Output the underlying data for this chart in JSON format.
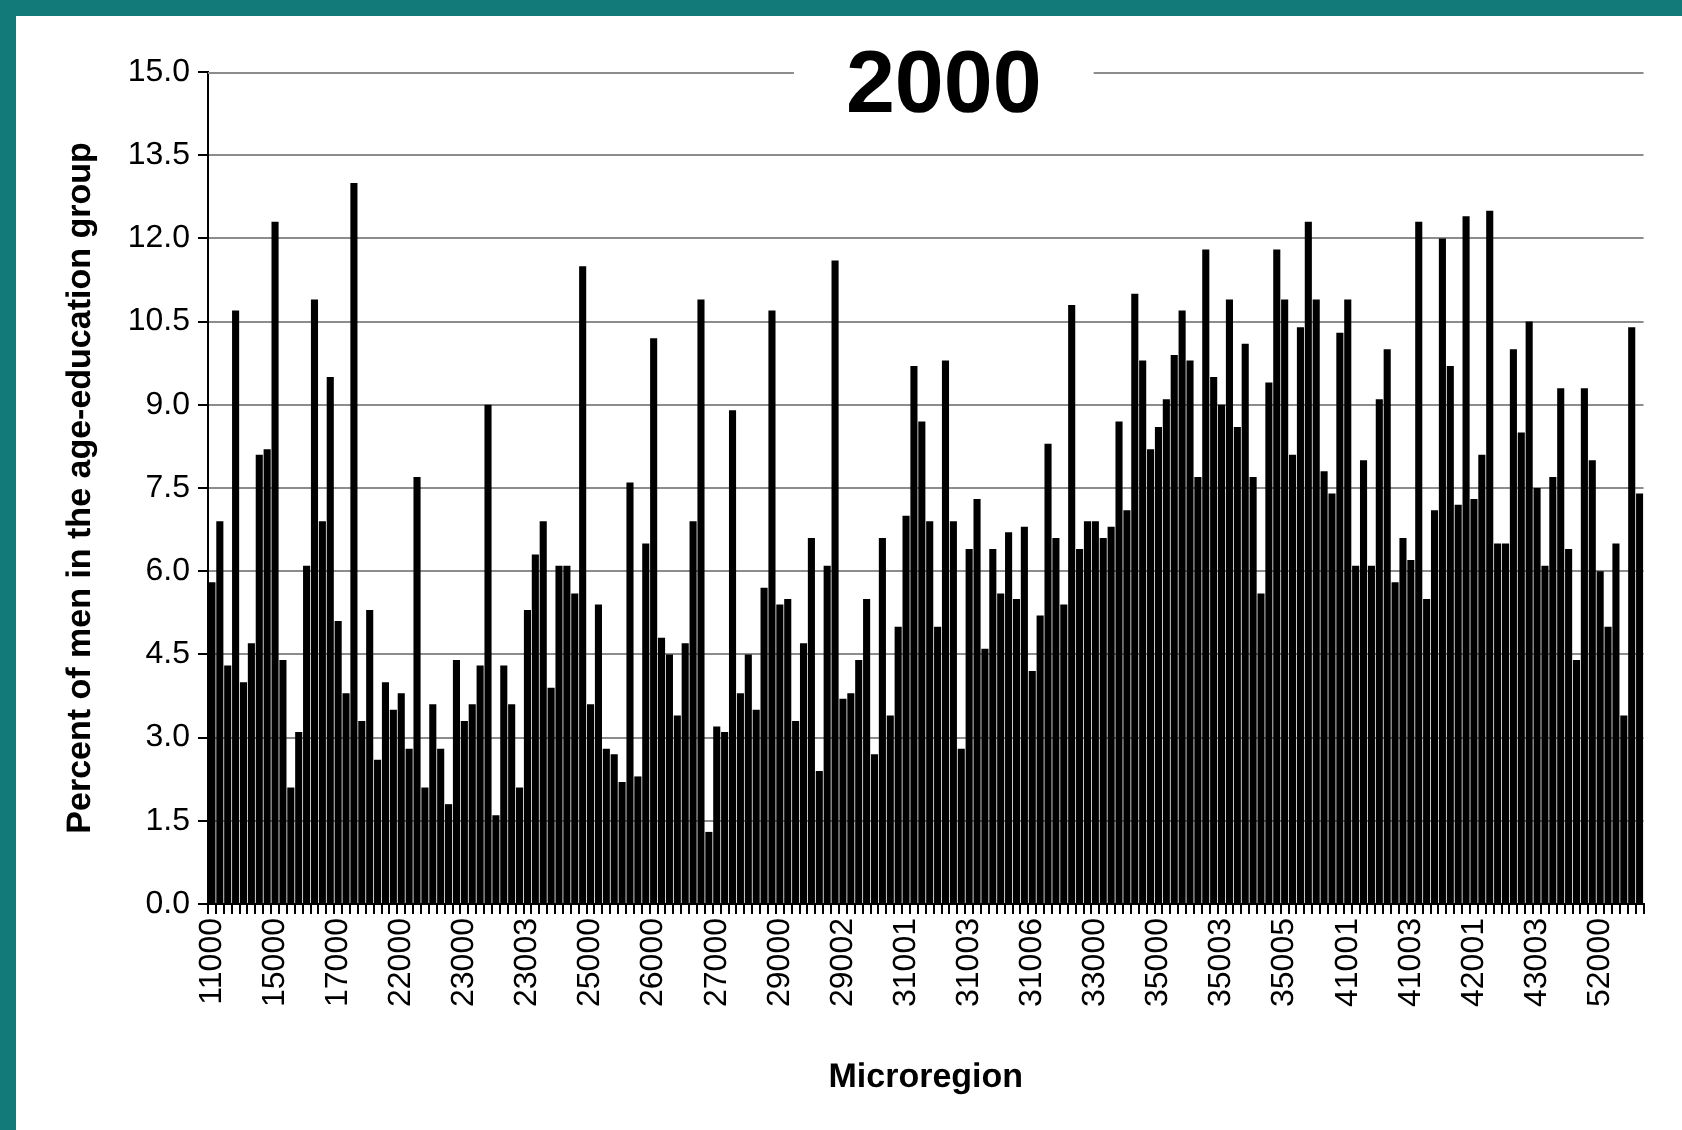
{
  "chart_data": {
    "type": "bar",
    "title": "2000",
    "xlabel": "Microregion",
    "ylabel": "Percent of men in the age-education group",
    "categories": [
      "11000",
      null,
      null,
      null,
      null,
      null,
      null,
      null,
      "15000",
      null,
      null,
      null,
      null,
      null,
      null,
      null,
      "17000",
      null,
      null,
      null,
      null,
      null,
      null,
      null,
      "22000",
      null,
      null,
      null,
      null,
      null,
      null,
      null,
      "23000",
      null,
      null,
      null,
      null,
      null,
      null,
      null,
      "23003",
      null,
      null,
      null,
      null,
      null,
      null,
      null,
      "25000",
      null,
      null,
      null,
      null,
      null,
      null,
      null,
      "26000",
      null,
      null,
      null,
      null,
      null,
      null,
      null,
      "27000",
      null,
      null,
      null,
      null,
      null,
      null,
      null,
      "29000",
      null,
      null,
      null,
      null,
      null,
      null,
      null,
      "29002",
      null,
      null,
      null,
      null,
      null,
      null,
      null,
      "31001",
      null,
      null,
      null,
      null,
      null,
      null,
      null,
      "31003",
      null,
      null,
      null,
      null,
      null,
      null,
      null,
      "31006",
      null,
      null,
      null,
      null,
      null,
      null,
      null,
      "33000",
      null,
      null,
      null,
      null,
      null,
      null,
      null,
      "35000",
      null,
      null,
      null,
      null,
      null,
      null,
      null,
      "35003",
      null,
      null,
      null,
      null,
      null,
      null,
      null,
      "35005",
      null,
      null,
      null,
      null,
      null,
      null,
      null,
      "41001",
      null,
      null,
      null,
      null,
      null,
      null,
      null,
      "41003",
      null,
      null,
      null,
      null,
      null,
      null,
      null,
      "42001",
      null,
      null,
      null,
      null,
      null,
      null,
      null,
      "43003",
      null,
      null,
      null,
      null,
      null,
      null,
      null,
      "52000",
      null,
      null,
      null,
      null,
      null
    ],
    "values": [
      5.8,
      6.9,
      4.3,
      10.7,
      4.0,
      4.7,
      8.1,
      8.2,
      12.3,
      4.4,
      2.1,
      3.1,
      6.1,
      10.9,
      6.9,
      9.5,
      5.1,
      3.8,
      13.0,
      3.3,
      5.3,
      2.6,
      4.0,
      3.5,
      3.8,
      2.8,
      7.7,
      2.1,
      3.6,
      2.8,
      1.8,
      4.4,
      3.3,
      3.6,
      4.3,
      9.0,
      1.6,
      4.3,
      3.6,
      2.1,
      5.3,
      6.3,
      6.9,
      3.9,
      6.1,
      6.1,
      5.6,
      11.5,
      3.6,
      5.4,
      2.8,
      2.7,
      2.2,
      7.6,
      2.3,
      6.5,
      10.2,
      4.8,
      4.5,
      3.4,
      4.7,
      6.9,
      10.9,
      1.3,
      3.2,
      3.1,
      8.9,
      3.8,
      4.5,
      3.5,
      5.7,
      10.7,
      5.4,
      5.5,
      3.3,
      4.7,
      6.6,
      2.4,
      6.1,
      11.6,
      3.7,
      3.8,
      4.4,
      5.5,
      2.7,
      6.6,
      3.4,
      5.0,
      7.0,
      9.7,
      8.7,
      6.9,
      5.0,
      9.8,
      6.9,
      2.8,
      6.4,
      7.3,
      4.6,
      6.4,
      5.6,
      6.7,
      5.5,
      6.8,
      4.2,
      5.2,
      8.3,
      6.6,
      5.4,
      10.8,
      6.4,
      6.9,
      6.9,
      6.6,
      6.8,
      8.7,
      7.1,
      11.0,
      9.8,
      8.2,
      8.6,
      9.1,
      9.9,
      10.7,
      9.8,
      7.7,
      11.8,
      9.5,
      9.0,
      10.9,
      8.6,
      10.1,
      7.7,
      5.6,
      9.4,
      11.8,
      10.9,
      8.1,
      10.4,
      12.3,
      10.9,
      7.8,
      7.4,
      10.3,
      10.9,
      6.1,
      8.0,
      6.1,
      9.1,
      10.0,
      5.8,
      6.6,
      6.2,
      12.3,
      5.5,
      7.1,
      12.0,
      9.7,
      7.2,
      12.4,
      7.3,
      8.1,
      12.5,
      6.5,
      6.5,
      10.0,
      8.5,
      10.5,
      7.5,
      6.1,
      7.7,
      9.3,
      6.4,
      4.4,
      9.3,
      8.0,
      6.0,
      5.0,
      6.5,
      3.4,
      10.4,
      7.4
    ],
    "color": "#000000",
    "ylim": [
      0,
      15
    ],
    "yticks": [
      {
        "value": 0,
        "label": "0.0"
      },
      1.5,
      {
        "value": 3,
        "label": "3.0"
      },
      4.5,
      {
        "value": 6,
        "label": "6.0"
      },
      7.5,
      {
        "value": 9,
        "label": "9.0"
      },
      10.5,
      {
        "value": 12,
        "label": "12.0"
      },
      13.5,
      {
        "value": 15,
        "label": "15.0"
      }
    ],
    "grid": "y"
  }
}
